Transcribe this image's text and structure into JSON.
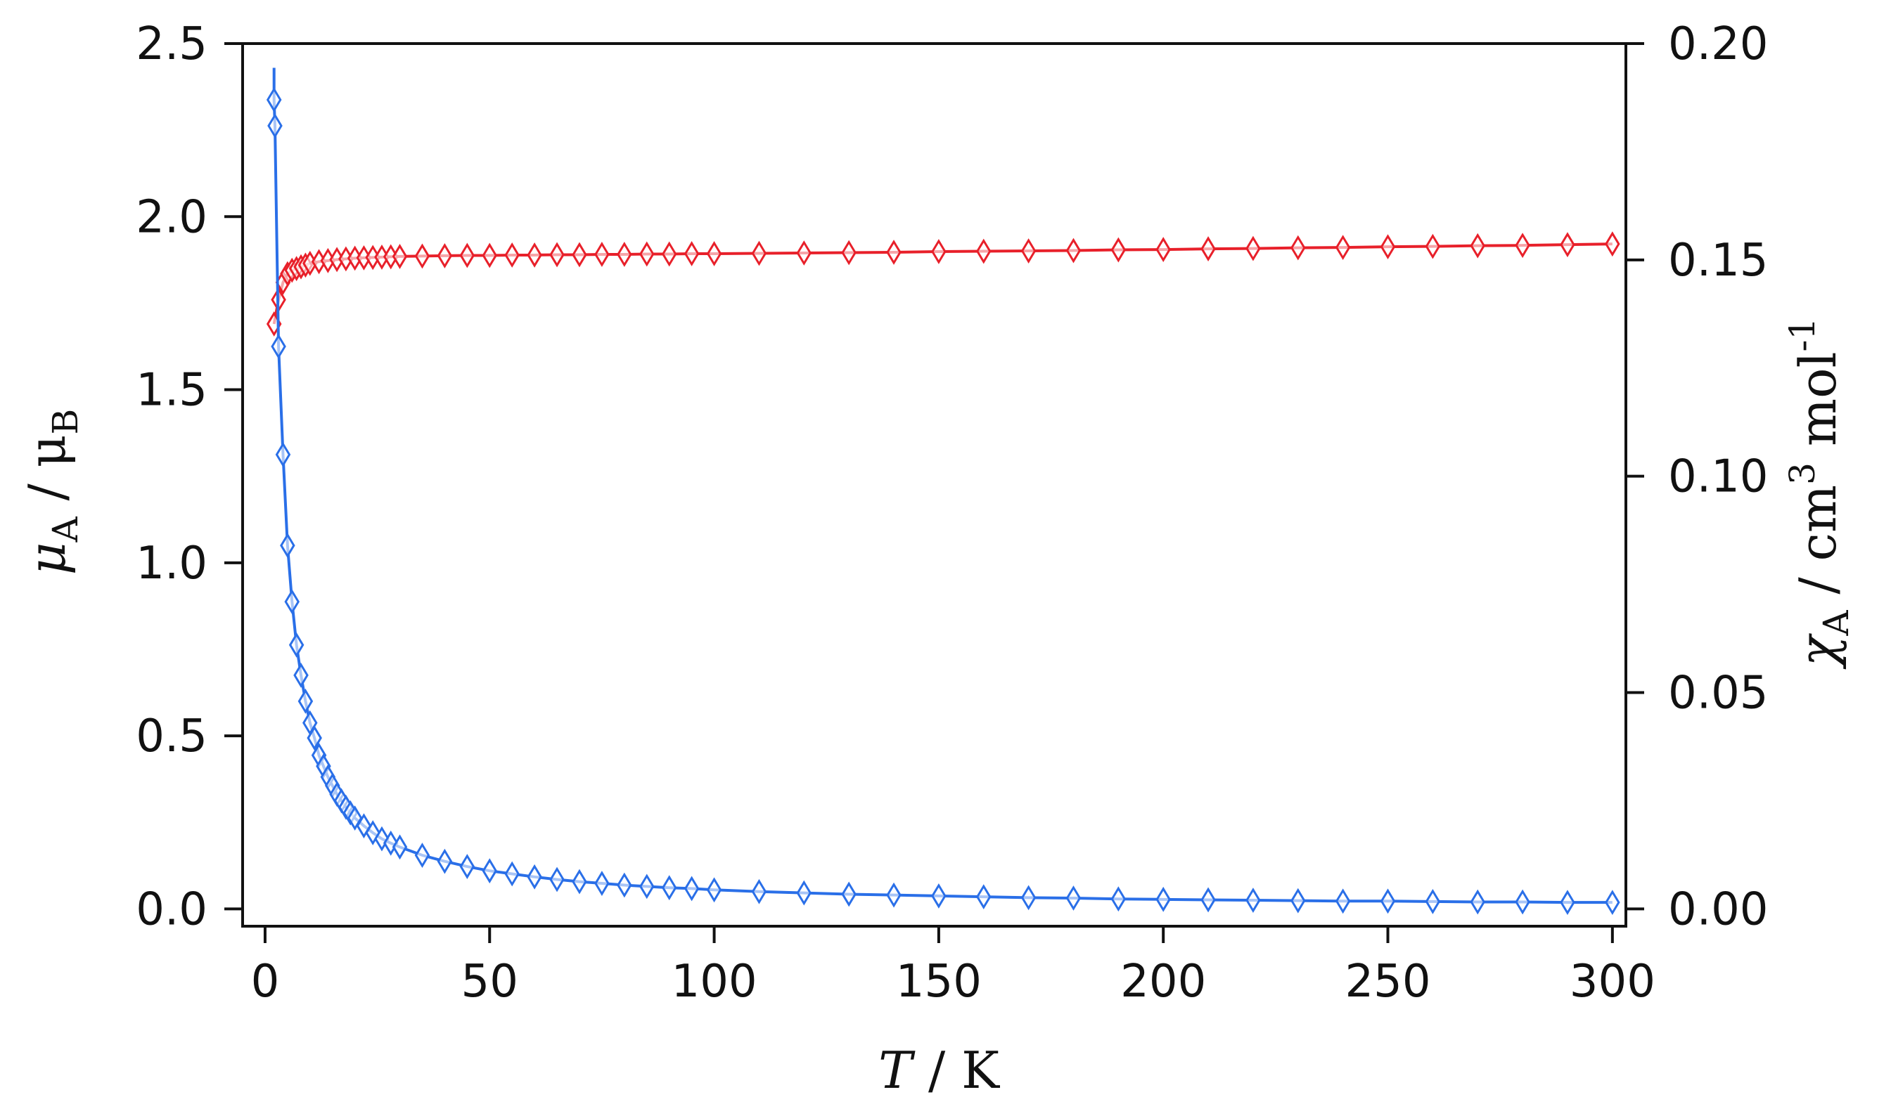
{
  "chart_data": {
    "type": "scatter",
    "title": "",
    "xlabel": {
      "symbol": "T",
      "unit": "K"
    },
    "ylabel_left": {
      "symbol": "μ",
      "sub": "A",
      "unit": "μ",
      "unit_sub": "B"
    },
    "ylabel_right": {
      "symbol": "χ",
      "sub": "A",
      "unit": "cm",
      "unit_sup": "3",
      "unit2": "mol",
      "unit2_sup": "-1"
    },
    "xlim": [
      -5,
      303
    ],
    "ylim_left": [
      -0.05,
      2.5
    ],
    "ylim_right": [
      -0.004,
      0.2
    ],
    "x_ticks": [
      0,
      50,
      100,
      150,
      200,
      250,
      300
    ],
    "x_tick_labels": [
      "0",
      "50",
      "100",
      "150",
      "200",
      "250",
      "300"
    ],
    "y_left_ticks": [
      0.0,
      0.5,
      1.0,
      1.5,
      2.0,
      2.5
    ],
    "y_left_tick_labels": [
      "0.0",
      "0.5",
      "1.0",
      "1.5",
      "2.0",
      "2.5"
    ],
    "y_right_ticks": [
      0.0,
      0.05,
      0.1,
      0.15,
      0.2
    ],
    "y_right_tick_labels": [
      "0.00",
      "0.05",
      "0.10",
      "0.15",
      "0.20"
    ],
    "grid": false,
    "legend": "none",
    "series": [
      {
        "name": "μA (left axis)",
        "axis": "left",
        "color": "#e8202a",
        "marker": "diamond",
        "x": [
          2,
          3,
          4,
          5,
          6,
          7,
          8,
          9,
          10,
          12,
          14,
          16,
          18,
          20,
          22,
          24,
          26,
          28,
          30,
          35,
          40,
          45,
          50,
          55,
          60,
          65,
          70,
          75,
          80,
          85,
          90,
          95,
          100,
          110,
          120,
          130,
          140,
          150,
          160,
          170,
          180,
          190,
          200,
          210,
          220,
          230,
          240,
          250,
          260,
          270,
          280,
          290,
          300
        ],
        "y": [
          1.69,
          1.76,
          1.81,
          1.835,
          1.845,
          1.85,
          1.855,
          1.86,
          1.865,
          1.87,
          1.873,
          1.876,
          1.878,
          1.88,
          1.881,
          1.882,
          1.883,
          1.884,
          1.885,
          1.886,
          1.887,
          1.888,
          1.888,
          1.889,
          1.889,
          1.89,
          1.89,
          1.891,
          1.891,
          1.892,
          1.892,
          1.893,
          1.893,
          1.894,
          1.895,
          1.896,
          1.897,
          1.899,
          1.9,
          1.901,
          1.902,
          1.904,
          1.905,
          1.907,
          1.908,
          1.91,
          1.911,
          1.913,
          1.914,
          1.916,
          1.917,
          1.919,
          1.921
        ]
      },
      {
        "name": "χA (right axis)",
        "axis": "right",
        "color": "#2a6fe8",
        "marker": "diamond",
        "x": [
          2,
          2.2,
          3,
          4,
          5,
          6,
          7,
          8,
          9,
          10,
          11,
          12,
          13,
          14,
          15,
          16,
          17,
          18,
          19,
          20,
          22,
          24,
          26,
          28,
          30,
          35,
          40,
          45,
          50,
          55,
          60,
          65,
          70,
          75,
          80,
          85,
          90,
          95,
          100,
          110,
          120,
          130,
          140,
          150,
          160,
          170,
          180,
          190,
          200,
          210,
          220,
          230,
          240,
          250,
          260,
          270,
          280,
          290,
          300
        ],
        "y": [
          0.187,
          0.181,
          0.13,
          0.105,
          0.084,
          0.071,
          0.061,
          0.054,
          0.048,
          0.043,
          0.0395,
          0.0355,
          0.033,
          0.0305,
          0.0285,
          0.0265,
          0.025,
          0.0235,
          0.0222,
          0.021,
          0.0192,
          0.0176,
          0.0162,
          0.0152,
          0.0143,
          0.0124,
          0.011,
          0.0098,
          0.0088,
          0.0081,
          0.0074,
          0.0068,
          0.0063,
          0.0059,
          0.0055,
          0.0052,
          0.0049,
          0.0047,
          0.0044,
          0.004,
          0.0037,
          0.0034,
          0.0032,
          0.003,
          0.0028,
          0.0026,
          0.0025,
          0.0023,
          0.0022,
          0.0021,
          0.002,
          0.0019,
          0.0018,
          0.0018,
          0.0017,
          0.0016,
          0.0016,
          0.0015,
          0.0015
        ]
      }
    ],
    "blue_curve_peak": {
      "x": 2,
      "y_left": 2.43
    }
  }
}
